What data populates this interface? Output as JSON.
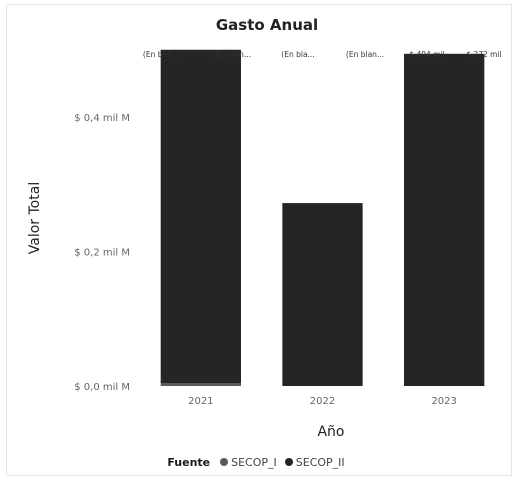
{
  "chart_data": {
    "type": "bar",
    "title": "Gasto Anual",
    "xlabel": "Año",
    "ylabel": "Valor Total",
    "categories": [
      "2021",
      "2022",
      "2023"
    ],
    "yticks": [
      {
        "value": 0.0,
        "label": "$ 0,0 mil M"
      },
      {
        "value": 0.2,
        "label": "$ 0,2 mil M"
      },
      {
        "value": 0.4,
        "label": "$ 0,4 mil M"
      }
    ],
    "ylim": [
      0,
      0.5
    ],
    "stacked": true,
    "series": [
      {
        "name": "SECOP_I",
        "values": [
          0.004,
          0.0,
          0.0
        ],
        "color": "#5a5a5a"
      },
      {
        "name": "SECOP_II",
        "values": [
          0.496,
          0.272,
          0.494
        ],
        "color": "#252525"
      }
    ],
    "data_labels": [
      "(En blan...",
      "(En blan...",
      "(En bla...",
      "(En blan...",
      "$ 494 mil",
      "$ 272 mil"
    ],
    "legend": {
      "title": "Fuente",
      "position": "bottom"
    },
    "grid": false
  }
}
